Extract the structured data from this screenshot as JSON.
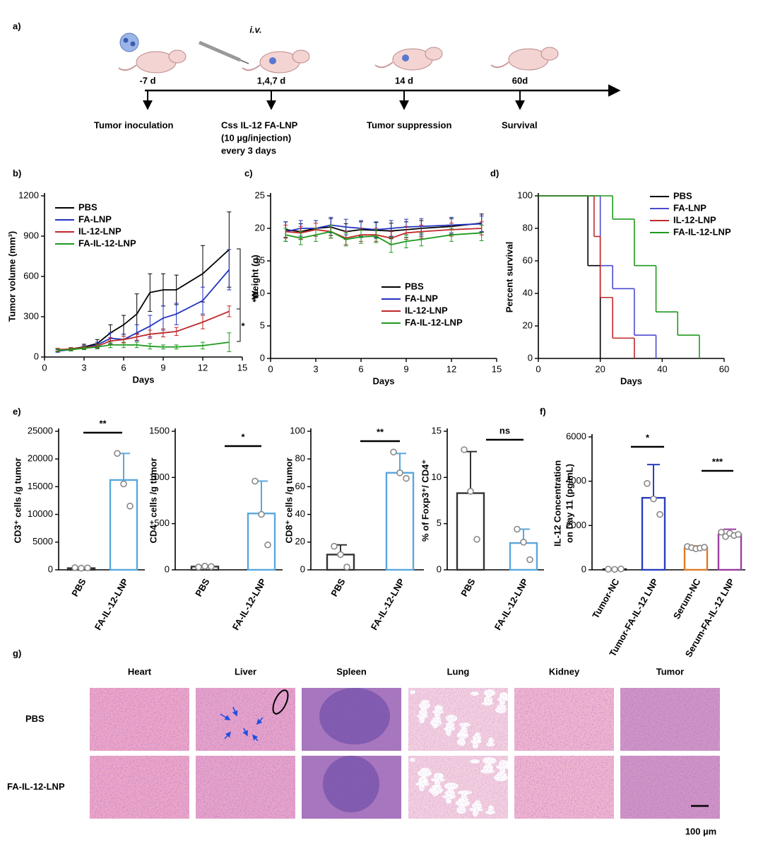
{
  "timeline": {
    "panel": "a)",
    "route": "i.v.",
    "points": [
      {
        "time": "-7 d",
        "event": [
          "Tumor inoculation"
        ]
      },
      {
        "time": "1,4,7 d",
        "event": [
          "Css IL-12 FA-LNP",
          "(10 µg/injection)",
          "every 3 days"
        ]
      },
      {
        "time": "14 d",
        "event": [
          "Tumor suppression"
        ]
      },
      {
        "time": "60d",
        "event": [
          "Survival"
        ]
      }
    ]
  },
  "chart_data": [
    {
      "type": "line",
      "panel": "b)",
      "x_label": "Days",
      "y_label": "Tumor volume (mm³)",
      "x": [
        1,
        2,
        3,
        4,
        5,
        6,
        7,
        8,
        9,
        10,
        12,
        14
      ],
      "xlim": [
        0,
        15
      ],
      "xticks": [
        0,
        3,
        6,
        9,
        12,
        15
      ],
      "ylim": [
        0,
        1200
      ],
      "yticks": [
        0,
        300,
        600,
        900,
        1200
      ],
      "legend": "upper left",
      "annotations": [
        "***",
        "*"
      ],
      "series": [
        {
          "name": "PBS",
          "color": "#000000",
          "values": [
            50,
            60,
            75,
            100,
            180,
            240,
            320,
            480,
            500,
            500,
            620,
            800
          ],
          "errors": [
            10,
            10,
            20,
            30,
            60,
            70,
            150,
            140,
            120,
            110,
            210,
            280
          ]
        },
        {
          "name": "FA-LNP",
          "color": "#2233c0",
          "values": [
            45,
            55,
            70,
            90,
            140,
            130,
            180,
            230,
            290,
            320,
            420,
            650
          ],
          "errors": [
            10,
            10,
            15,
            20,
            40,
            40,
            60,
            80,
            90,
            80,
            100,
            150
          ]
        },
        {
          "name": "IL-12-LNP",
          "color": "#c0282a",
          "values": [
            55,
            60,
            70,
            80,
            120,
            130,
            150,
            170,
            180,
            190,
            260,
            340
          ],
          "errors": [
            10,
            10,
            10,
            15,
            25,
            25,
            25,
            30,
            30,
            30,
            50,
            40
          ]
        },
        {
          "name": "FA-IL-12-LNP",
          "color": "#1e9a1e",
          "values": [
            50,
            55,
            65,
            75,
            90,
            90,
            90,
            80,
            75,
            75,
            85,
            110
          ],
          "errors": [
            10,
            10,
            10,
            15,
            20,
            20,
            20,
            20,
            15,
            15,
            25,
            70
          ]
        }
      ]
    },
    {
      "type": "line",
      "panel": "c)",
      "x_label": "Days",
      "y_label": "Weight (g)",
      "x": [
        1,
        2,
        3,
        4,
        5,
        6,
        7,
        8,
        9,
        10,
        12,
        14
      ],
      "xlim": [
        0,
        15
      ],
      "xticks": [
        0,
        3,
        6,
        9,
        12,
        15
      ],
      "ylim": [
        0,
        25
      ],
      "yticks": [
        0,
        5,
        10,
        15,
        20,
        25
      ],
      "legend": "center",
      "series": [
        {
          "name": "PBS",
          "color": "#000000",
          "values": [
            19.8,
            19.5,
            20,
            20.2,
            19.5,
            19.8,
            19.7,
            19.6,
            19.8,
            20,
            20.3,
            20.8
          ],
          "errors": [
            1.2,
            1.2,
            1.2,
            1.3,
            1.2,
            1.2,
            1.2,
            1.2,
            1.2,
            1.2,
            1.2,
            1.4
          ]
        },
        {
          "name": "FA-LNP",
          "color": "#2233c0",
          "values": [
            19.5,
            20,
            20,
            20.5,
            20.2,
            20,
            19.8,
            20,
            20.2,
            20.3,
            20.5,
            20.7
          ],
          "errors": [
            1.5,
            1.2,
            1.2,
            1.2,
            1.2,
            1.2,
            1.2,
            1.2,
            1.2,
            1.2,
            1.2,
            1.2
          ]
        },
        {
          "name": "IL-12-LNP",
          "color": "#c0282a",
          "values": [
            19.5,
            19.3,
            19.8,
            19.5,
            18.5,
            19,
            19,
            18.5,
            19.3,
            19.5,
            19.8,
            20
          ],
          "errors": [
            1,
            1,
            1,
            1,
            1,
            1,
            1,
            1,
            1,
            1,
            1,
            1
          ]
        },
        {
          "name": "FA-IL-12-LNP",
          "color": "#1e9a1e",
          "values": [
            19,
            18.5,
            19,
            19.5,
            18.3,
            18.7,
            18.8,
            17.5,
            18,
            18.3,
            19,
            19.3
          ],
          "errors": [
            1,
            1,
            1,
            1,
            1,
            1,
            1,
            1.2,
            1,
            1,
            1,
            1.2
          ]
        }
      ]
    },
    {
      "type": "step",
      "panel": "d)",
      "x_label": "Days",
      "y_label": "Percent survival",
      "xlim": [
        0,
        60
      ],
      "xticks": [
        0,
        20,
        40,
        60
      ],
      "ylim": [
        0,
        100
      ],
      "yticks": [
        0,
        20,
        40,
        60,
        80,
        100
      ],
      "legend": "upper right",
      "series": [
        {
          "name": "PBS",
          "color": "#000000",
          "x": [
            0,
            16,
            20
          ],
          "values": [
            100,
            57.1,
            0
          ]
        },
        {
          "name": "FA-LNP",
          "color": "#4a4ad0",
          "x": [
            0,
            20,
            24,
            31,
            38
          ],
          "values": [
            100,
            57.1,
            42.9,
            14.3,
            0
          ]
        },
        {
          "name": "IL-12-LNP",
          "color": "#c0282a",
          "x": [
            0,
            18,
            20,
            24,
            31
          ],
          "values": [
            100,
            75,
            37.5,
            12.5,
            0
          ]
        },
        {
          "name": "FA-IL-12-LNP",
          "color": "#1e9a1e",
          "x": [
            0,
            24,
            31,
            38,
            45,
            52
          ],
          "values": [
            100,
            85.7,
            57.1,
            28.6,
            14.3,
            0
          ]
        }
      ]
    },
    {
      "type": "bar",
      "panel": "e)",
      "y_label": "CD3⁺ cells /g tumor",
      "categories": [
        "PBS",
        "FA-IL-12-LNP"
      ],
      "colors": [
        "#333333",
        "#5aa7dd"
      ],
      "values": [
        300,
        16200
      ],
      "errors": [
        100,
        4800
      ],
      "points": [
        [
          400,
          300,
          350
        ],
        [
          21000,
          15500,
          11500
        ]
      ],
      "ylim": [
        0,
        25000
      ],
      "yticks": [
        0,
        5000,
        10000,
        15000,
        20000,
        25000
      ],
      "annotations": [
        "**"
      ]
    },
    {
      "type": "bar",
      "y_label": "CD4⁺ cells /g tumor",
      "categories": [
        "PBS",
        "FA-IL-12-LNP"
      ],
      "colors": [
        "#333333",
        "#5aa7dd"
      ],
      "values": [
        35,
        610
      ],
      "errors": [
        8,
        350
      ],
      "points": [
        [
          30,
          40,
          35
        ],
        [
          960,
          600,
          270
        ]
      ],
      "ylim": [
        0,
        1500
      ],
      "yticks": [
        0,
        500,
        1000,
        1500
      ],
      "annotations": [
        "*"
      ]
    },
    {
      "type": "bar",
      "y_label": "CD8⁺ cells /g tumor",
      "categories": [
        "PBS",
        "FA-IL-12-LNP"
      ],
      "colors": [
        "#333333",
        "#5aa7dd"
      ],
      "values": [
        11,
        70
      ],
      "errors": [
        7,
        14
      ],
      "points": [
        [
          17,
          11,
          2
        ],
        [
          85,
          70,
          66
        ]
      ],
      "ylim": [
        0,
        100
      ],
      "yticks": [
        0,
        20,
        40,
        60,
        80,
        100
      ],
      "annotations": [
        "**"
      ]
    },
    {
      "type": "bar",
      "y_label": "% of Foxp3⁺/ CD4⁺",
      "categories": [
        "PBS",
        "FA-IL-12-LNP"
      ],
      "colors": [
        "#333333",
        "#5aa7dd"
      ],
      "values": [
        8.3,
        2.9
      ],
      "errors": [
        4.5,
        1.5
      ],
      "points": [
        [
          13,
          8.5,
          3.3
        ],
        [
          4.4,
          3,
          1.1
        ]
      ],
      "ylim": [
        0,
        15
      ],
      "yticks": [
        0,
        5,
        10,
        15
      ],
      "annotations": [
        "ns"
      ]
    },
    {
      "type": "bar",
      "panel": "f)",
      "y_label": [
        "IL-12 Concentration",
        "on Day 11 (pg/mL)"
      ],
      "categories": [
        "Tumor-NC",
        "Tumor-FA-IL-12 LNP",
        "Serum-NC",
        "Serum-FA-IL-12 LNP"
      ],
      "colors": [
        "#222222",
        "#2a3fbf",
        "#e07b2a",
        "#9b3fa0"
      ],
      "values": [
        30,
        3250,
        1000,
        1600
      ],
      "errors": [
        20,
        1500,
        80,
        230
      ],
      "points": [
        [
          30,
          20,
          40
        ],
        [
          3900,
          3200,
          2500
        ],
        [
          1050,
          1000,
          950,
          980,
          1020
        ],
        [
          1700,
          1500,
          1650,
          1550,
          1600
        ]
      ],
      "ylim": [
        0,
        6000
      ],
      "yticks": [
        0,
        2000,
        4000,
        6000
      ],
      "annotations": [
        "*",
        "***"
      ]
    }
  ],
  "histology": {
    "panel": "g)",
    "columns": [
      "Heart",
      "Liver",
      "Spleen",
      "Lung",
      "Kidney",
      "Tumor"
    ],
    "rows": [
      "PBS",
      "FA-IL-12-LNP"
    ],
    "scale": "100 µm"
  }
}
